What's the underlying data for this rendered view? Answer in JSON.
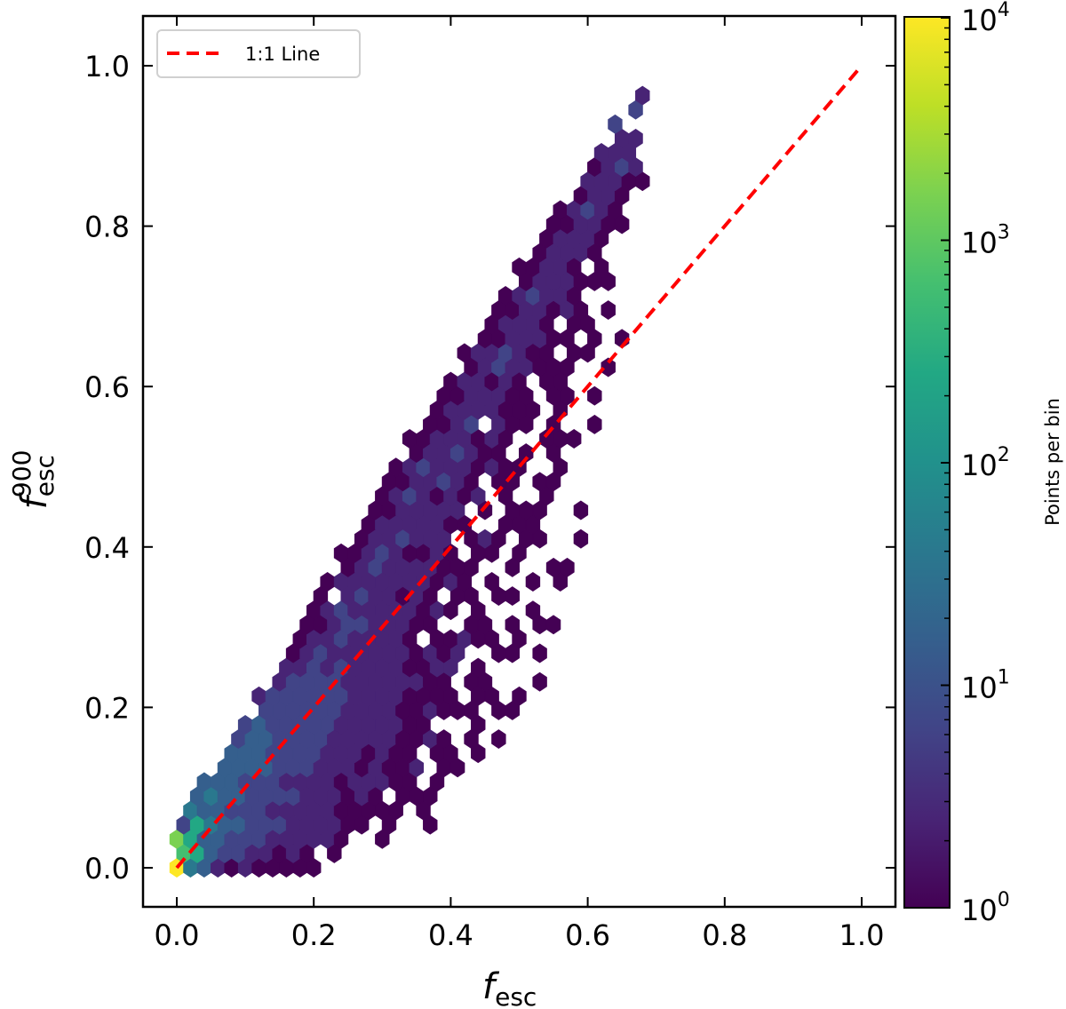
{
  "chart_data": {
    "type": "heatmap",
    "subtype": "hexbin",
    "title": "",
    "xlabel": "f_esc",
    "xlabel_main": "f",
    "xlabel_sub": "esc",
    "ylabel": "f_esc^900",
    "ylabel_main": "f",
    "ylabel_sub": "esc",
    "ylabel_sup": "900",
    "xlim": [
      -0.05,
      1.05
    ],
    "ylim": [
      -0.05,
      1.06
    ],
    "xticks": [
      "0.0",
      "0.2",
      "0.4",
      "0.6",
      "0.8",
      "1.0"
    ],
    "yticks": [
      "0.0",
      "0.2",
      "0.4",
      "0.6",
      "0.8",
      "1.0"
    ],
    "grid": false,
    "colormap": "viridis",
    "color_scale": "log",
    "colorbar": {
      "label": "Points per bin",
      "range": [
        1,
        10000
      ],
      "ticks": [
        {
          "base": "10",
          "exp": "0"
        },
        {
          "base": "10",
          "exp": "1"
        },
        {
          "base": "10",
          "exp": "2"
        },
        {
          "base": "10",
          "exp": "3"
        },
        {
          "base": "10",
          "exp": "4"
        }
      ]
    },
    "legend": {
      "position": "upper left",
      "entries": [
        {
          "label": "1:1 Line",
          "style": "dashed",
          "color": "#ff0000"
        }
      ]
    },
    "reference_line": {
      "label": "1:1 Line",
      "x": [
        0,
        1
      ],
      "y": [
        0,
        1
      ],
      "color": "#ff0000",
      "style": "dashed"
    },
    "hexbin": {
      "gridsize": 50,
      "note": "rows = half-rows from y=0 upward; chars = column index; '.' empty; '0'-'9' = log10(count) scaled 0..4 (0=1 count, 9=10^4)",
      "rows": [
        "94310100000",
        "6532211010.0.",
        "7533222111110..0",
        "25433222111100.0..0",
        ".4332221111100000.0",
        ".34332222111010.000",
        "..3332221111011100.0",
        "...333322211101001.00.",
        "....33322221110100.00.0",
        "....2332222111110010.0.0",
        ".....23222221111100...0",
        "......2222221111001000.00",
        "......122222211110000.00.0",
        ".......1222211111100.00...0",
        "........1121211110011.0...",
        "........0121111110101..00.0",
        ".........011211110.00100.0",
        ".........0012211100..00.0.00",
        "..........01211111010.0...0",
        "..........0.1211010.00.00.",
        "...........01111111010.0..0.0",
        "............0121111000..0..00",
        "............001210010.00.0",
        ".............0112111.010.00..0",
        "..............01111100..000",
        "..............0011111.0.000..0",
        "...............01210101.0..0",
        "...............0011210.00.00.",
        "................0121110100..0",
        ".................0112100.0.0",
        ".................00111010..000",
        "..................0012.100.0..0",
        "...................01111000.0",
        "...................0011100.00.0",
        "....................011010.00.",
        ".....................01211000..0",
        ".....................0112100.00",
        "......................0011100.0.0",
        ".......................01110.00",
        ".......................0011010.0",
        "........................012110.",
        ".........................0111000",
        ".........................00110.0",
        "..........................01110",
        "...........................01110.",
        "...........................001100",
        "............................01210",
        ".............................0110.",
        "..............................11100",
        "..............................0121",
        "...............................111",
        "................................11",
        "................................2",
        ".................................2",
        "..................................1"
      ]
    }
  },
  "legend": {
    "label": "1:1 Line"
  },
  "axes": {
    "xlabel_main": "f",
    "xlabel_sub": "esc",
    "ylabel_main": "f",
    "ylabel_sub": "esc",
    "ylabel_sup": "900"
  },
  "colorbar": {
    "label": "Points per bin"
  }
}
